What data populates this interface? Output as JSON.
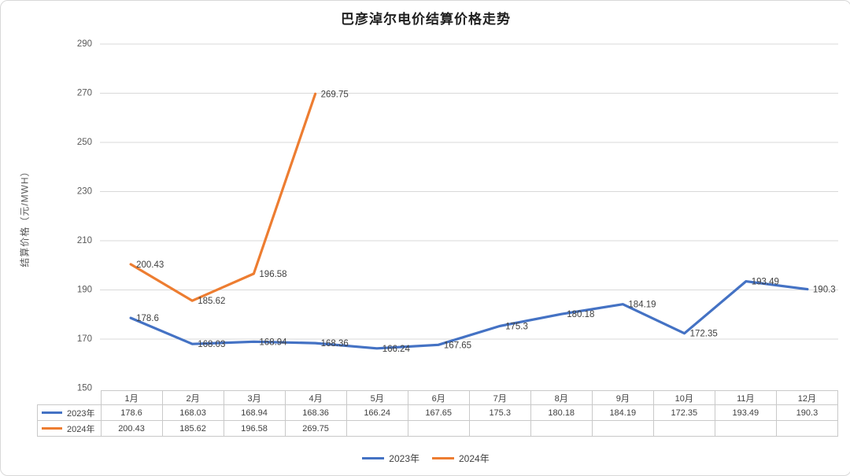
{
  "chart_data": {
    "type": "line",
    "title": "巴彦淖尔电价结算价格走势",
    "ylabel": "结算价格（元/MWH）",
    "xlabel": "",
    "ylim": [
      150,
      290
    ],
    "yticks": [
      150,
      170,
      190,
      210,
      230,
      250,
      270,
      290
    ],
    "grid": true,
    "data_labels": true,
    "legend_position": "bottom",
    "categories": [
      "1月",
      "2月",
      "3月",
      "4月",
      "5月",
      "6月",
      "7月",
      "8月",
      "9月",
      "10月",
      "11月",
      "12月"
    ],
    "series": [
      {
        "name": "2023年",
        "color": "#4472C4",
        "values": [
          178.6,
          168.03,
          168.94,
          168.36,
          166.24,
          167.65,
          175.3,
          180.18,
          184.19,
          172.35,
          193.49,
          190.3
        ]
      },
      {
        "name": "2024年",
        "color": "#ED7D31",
        "values": [
          200.43,
          185.62,
          196.58,
          269.75,
          null,
          null,
          null,
          null,
          null,
          null,
          null,
          null
        ]
      }
    ]
  },
  "colors": {
    "gridline": "#d9d9d9",
    "axis_text": "#595959",
    "label_text": "#404040",
    "table_border": "#c9c9c9"
  }
}
